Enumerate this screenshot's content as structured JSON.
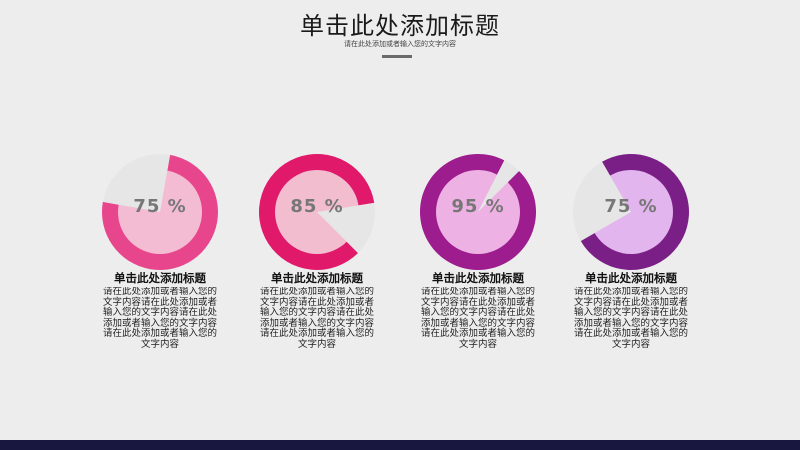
{
  "header": {
    "title": "单击此处添加标题",
    "subtitle": "请在此处添加或者输入您的文字内容"
  },
  "items": [
    {
      "percent_label": "75 %",
      "percent": 75,
      "title": "单击此处添加标题",
      "body": "请在此处添加或者输入您的文字内容请在此处添加或者输入您的文字内容请在此处添加或者输入您的文字内容请在此处添加或者输入您的文字内容",
      "ring_color": "#e8468c",
      "fill_color": "#f4bcd3",
      "wedge_color": "#e6e6e6"
    },
    {
      "percent_label": "85 %",
      "percent": 85,
      "title": "单击此处添加标题",
      "body": "请在此处添加或者输入您的文字内容请在此处添加或者输入您的文字内容请在此处添加或者输入您的文字内容请在此处添加或者输入您的文字内容",
      "ring_color": "#e0196a",
      "fill_color": "#f2bdcf",
      "wedge_color": "#e6e6e6"
    },
    {
      "percent_label": "95 %",
      "percent": 95,
      "title": "单击此处添加标题",
      "body": "请在此处添加或者输入您的文字内容请在此处添加或者输入您的文字内容请在此处添加或者输入您的文字内容请在此处添加或者输入您的文字内容",
      "ring_color": "#9d1c8e",
      "fill_color": "#eeb1e3",
      "wedge_color": "#e6e6e6"
    },
    {
      "percent_label": "75 %",
      "percent": 75,
      "title": "单击此处添加标题",
      "body": "请在此处添加或者输入您的文字内容请在此处添加或者输入您的文字内容请在此处添加或者输入您的文字内容请在此处添加或者输入您的文字内容",
      "ring_color": "#7a1f86",
      "fill_color": "#e3b5ee",
      "wedge_color": "#e6e6e6"
    }
  ]
}
